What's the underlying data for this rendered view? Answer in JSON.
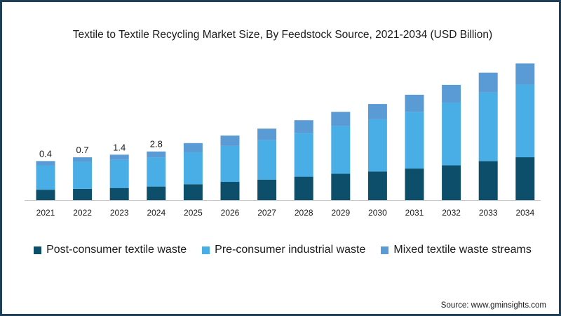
{
  "chart_data": {
    "type": "stacked-bar",
    "title": "Textile to Textile Recycling Market Size, By Feedstock Source, 2021-2034 (USD Billion)",
    "categories": [
      "2021",
      "2022",
      "2023",
      "2024",
      "2025",
      "2026",
      "2027",
      "2028",
      "2029",
      "2030",
      "2031",
      "2032",
      "2033",
      "2034"
    ],
    "series": [
      {
        "name": "Post-consumer textile waste",
        "color": "#0d4f6a",
        "values": [
          0.36,
          0.39,
          0.42,
          0.47,
          0.55,
          0.63,
          0.71,
          0.81,
          0.91,
          0.99,
          1.09,
          1.2,
          1.35,
          1.48
        ]
      },
      {
        "name": "Pre-consumer industrial waste",
        "color": "#4aaee6",
        "values": [
          0.84,
          0.93,
          0.97,
          1.0,
          1.1,
          1.24,
          1.36,
          1.51,
          1.65,
          1.8,
          1.96,
          2.17,
          2.37,
          2.51
        ]
      },
      {
        "name": "Mixed textile waste streams",
        "color": "#5b9bd5",
        "values": [
          0.15,
          0.16,
          0.18,
          0.21,
          0.32,
          0.36,
          0.4,
          0.44,
          0.49,
          0.53,
          0.59,
          0.61,
          0.68,
          0.73
        ]
      }
    ],
    "data_labels": [
      "0.4",
      "0.7",
      "1.4",
      "2.8",
      "",
      "",
      "",
      "",
      "",
      "",
      "",
      "",
      "",
      ""
    ],
    "xlabel": "",
    "ylabel": "",
    "ylim": [
      0,
      4.85
    ],
    "grid": false,
    "legend_position": "bottom"
  },
  "source": "Source: www.gminsights.com"
}
